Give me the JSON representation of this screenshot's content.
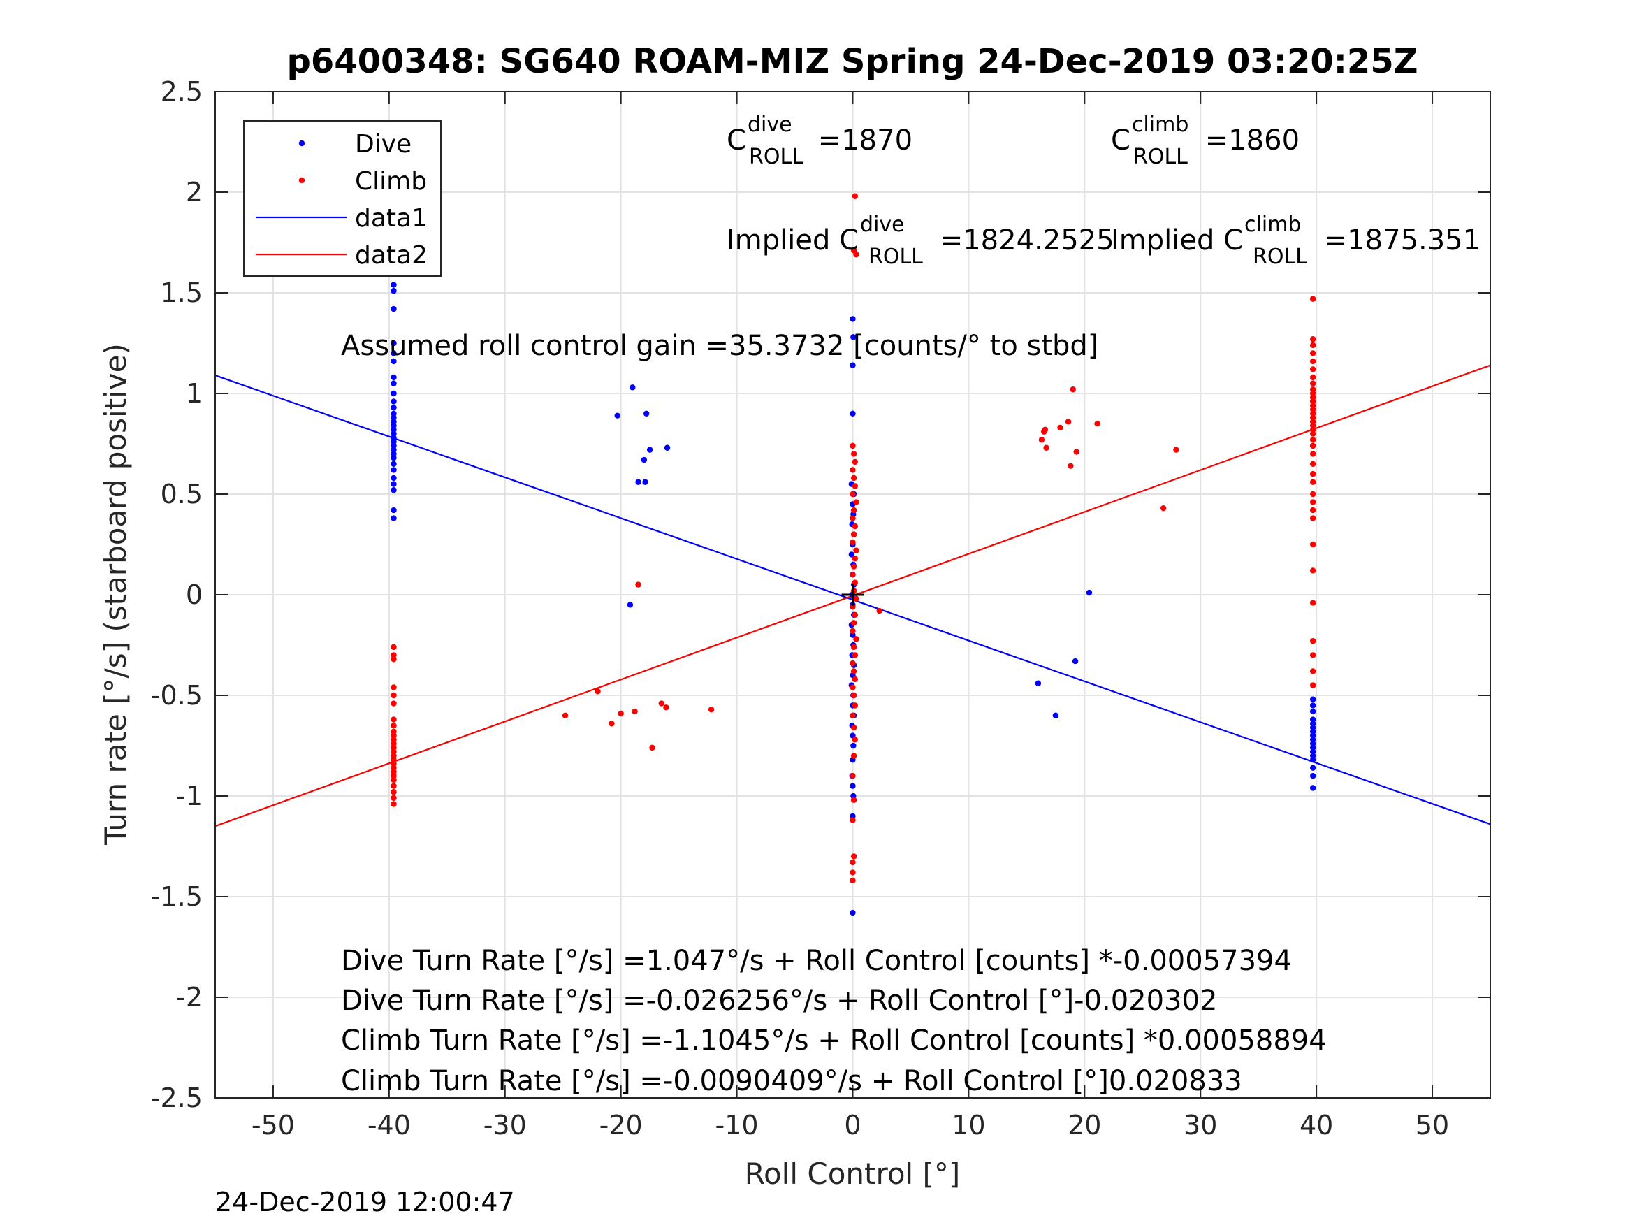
{
  "chart_data": {
    "type": "scatter",
    "title": "p6400348: SG640 ROAM-MIZ Spring 24-Dec-2019 03:20:25Z",
    "xlabel": "Roll Control [°]",
    "ylabel": "Turn rate [°/s] (starboard positive)",
    "xlim": [
      -55,
      55
    ],
    "ylim": [
      -2.5,
      2.5
    ],
    "xticks": [
      -50,
      -40,
      -30,
      -20,
      -10,
      0,
      10,
      20,
      30,
      40,
      50
    ],
    "yticks": [
      -2.5,
      -2,
      -1.5,
      -1,
      -0.5,
      0,
      0.5,
      1,
      1.5,
      2,
      2.5
    ],
    "xtick_labels": [
      "-50",
      "-40",
      "-30",
      "-20",
      "-10",
      "0",
      "10",
      "20",
      "30",
      "40",
      "50"
    ],
    "ytick_labels": [
      "-2.5",
      "-2",
      "-1.5",
      "-1",
      "-0.5",
      "0",
      "0.5",
      "1",
      "1.5",
      "2",
      "2.5"
    ],
    "grid": true,
    "legend_position": "top-left",
    "legend": [
      {
        "label": "Dive",
        "kind": "marker",
        "color": "#0000ff"
      },
      {
        "label": "Climb",
        "kind": "marker",
        "color": "#ff0000"
      },
      {
        "label": "data1",
        "kind": "line",
        "color": "#0000ff"
      },
      {
        "label": "data2",
        "kind": "line",
        "color": "#ff0000"
      }
    ],
    "series": [
      {
        "name": "Dive",
        "color": "#0000ff",
        "points": [
          [
            -39.6,
            1.54
          ],
          [
            -39.6,
            1.51
          ],
          [
            -39.6,
            1.42
          ],
          [
            -39.6,
            1.25
          ],
          [
            -39.6,
            1.2
          ],
          [
            -39.6,
            1.16
          ],
          [
            -39.6,
            1.08
          ],
          [
            -39.6,
            1.05
          ],
          [
            -39.6,
            1.0
          ],
          [
            -39.6,
            0.96
          ],
          [
            -39.6,
            0.93
          ],
          [
            -39.6,
            0.9
          ],
          [
            -39.6,
            0.88
          ],
          [
            -39.6,
            0.86
          ],
          [
            -39.6,
            0.84
          ],
          [
            -39.6,
            0.82
          ],
          [
            -39.6,
            0.8
          ],
          [
            -39.6,
            0.78
          ],
          [
            -39.6,
            0.76
          ],
          [
            -39.6,
            0.74
          ],
          [
            -39.6,
            0.72
          ],
          [
            -39.6,
            0.7
          ],
          [
            -39.6,
            0.68
          ],
          [
            -39.6,
            0.65
          ],
          [
            -39.6,
            0.62
          ],
          [
            -39.6,
            0.58
          ],
          [
            -39.6,
            0.55
          ],
          [
            -39.6,
            0.52
          ],
          [
            -39.6,
            0.42
          ],
          [
            -39.6,
            0.38
          ],
          [
            -19.0,
            1.03
          ],
          [
            -20.3,
            0.89
          ],
          [
            -17.8,
            0.9
          ],
          [
            -17.5,
            0.72
          ],
          [
            -16.0,
            0.73
          ],
          [
            -18.0,
            0.67
          ],
          [
            -18.5,
            0.56
          ],
          [
            -17.9,
            0.56
          ],
          [
            -19.2,
            -0.05
          ],
          [
            0.0,
            1.37
          ],
          [
            0.05,
            1.28
          ],
          [
            0.0,
            1.14
          ],
          [
            0.0,
            0.9
          ],
          [
            -0.1,
            0.55
          ],
          [
            0.1,
            0.5
          ],
          [
            0.0,
            0.45
          ],
          [
            0.05,
            0.4
          ],
          [
            -0.05,
            0.35
          ],
          [
            0.1,
            0.3
          ],
          [
            0.0,
            0.25
          ],
          [
            -0.1,
            0.2
          ],
          [
            0.05,
            0.15
          ],
          [
            0.0,
            0.1
          ],
          [
            0.1,
            0.05
          ],
          [
            -0.05,
            0.0
          ],
          [
            0.0,
            -0.05
          ],
          [
            0.1,
            -0.1
          ],
          [
            -0.1,
            -0.15
          ],
          [
            0.0,
            -0.2
          ],
          [
            0.05,
            -0.25
          ],
          [
            -0.05,
            -0.3
          ],
          [
            0.1,
            -0.35
          ],
          [
            0.0,
            -0.4
          ],
          [
            -0.1,
            -0.45
          ],
          [
            0.05,
            -0.5
          ],
          [
            0.0,
            -0.55
          ],
          [
            0.1,
            -0.6
          ],
          [
            -0.05,
            -0.65
          ],
          [
            0.0,
            -0.7
          ],
          [
            0.05,
            -0.75
          ],
          [
            0.0,
            -0.82
          ],
          [
            -0.05,
            -0.9
          ],
          [
            0.0,
            -0.95
          ],
          [
            0.05,
            -1.0
          ],
          [
            0.0,
            -1.1
          ],
          [
            0.0,
            -1.58
          ],
          [
            16.0,
            -0.44
          ],
          [
            17.5,
            -0.6
          ],
          [
            19.2,
            -0.33
          ],
          [
            20.4,
            0.01
          ],
          [
            39.7,
            -0.52
          ],
          [
            39.7,
            -0.55
          ],
          [
            39.7,
            -0.58
          ],
          [
            39.7,
            -0.62
          ],
          [
            39.7,
            -0.64
          ],
          [
            39.7,
            -0.66
          ],
          [
            39.7,
            -0.68
          ],
          [
            39.7,
            -0.7
          ],
          [
            39.7,
            -0.72
          ],
          [
            39.7,
            -0.74
          ],
          [
            39.7,
            -0.76
          ],
          [
            39.7,
            -0.78
          ],
          [
            39.7,
            -0.8
          ],
          [
            39.7,
            -0.82
          ],
          [
            39.7,
            -0.86
          ],
          [
            39.7,
            -0.9
          ],
          [
            39.7,
            -0.96
          ]
        ]
      },
      {
        "name": "Climb",
        "color": "#ff0000",
        "points": [
          [
            -39.6,
            -0.26
          ],
          [
            -39.6,
            -0.3
          ],
          [
            -39.6,
            -0.32
          ],
          [
            -39.6,
            -0.46
          ],
          [
            -39.6,
            -0.5
          ],
          [
            -39.6,
            -0.54
          ],
          [
            -39.6,
            -0.62
          ],
          [
            -39.6,
            -0.65
          ],
          [
            -39.6,
            -0.68
          ],
          [
            -39.6,
            -0.7
          ],
          [
            -39.6,
            -0.72
          ],
          [
            -39.6,
            -0.74
          ],
          [
            -39.6,
            -0.76
          ],
          [
            -39.6,
            -0.78
          ],
          [
            -39.6,
            -0.8
          ],
          [
            -39.6,
            -0.82
          ],
          [
            -39.6,
            -0.84
          ],
          [
            -39.6,
            -0.86
          ],
          [
            -39.6,
            -0.88
          ],
          [
            -39.6,
            -0.9
          ],
          [
            -39.6,
            -0.92
          ],
          [
            -39.6,
            -0.95
          ],
          [
            -39.6,
            -0.98
          ],
          [
            -39.6,
            -1.01
          ],
          [
            -39.6,
            -1.04
          ],
          [
            -24.8,
            -0.6
          ],
          [
            -22.0,
            -0.48
          ],
          [
            -20.8,
            -0.64
          ],
          [
            -20.0,
            -0.59
          ],
          [
            -18.8,
            -0.58
          ],
          [
            -16.5,
            -0.54
          ],
          [
            -16.1,
            -0.56
          ],
          [
            -17.3,
            -0.76
          ],
          [
            -12.2,
            -0.57
          ],
          [
            -18.5,
            0.05
          ],
          [
            0.2,
            1.98
          ],
          [
            0.1,
            1.71
          ],
          [
            0.3,
            1.69
          ],
          [
            0.0,
            0.74
          ],
          [
            0.1,
            0.7
          ],
          [
            0.2,
            0.66
          ],
          [
            0.0,
            0.62
          ],
          [
            0.1,
            0.58
          ],
          [
            0.2,
            0.54
          ],
          [
            0.0,
            0.5
          ],
          [
            0.3,
            0.46
          ],
          [
            0.1,
            0.42
          ],
          [
            0.0,
            0.38
          ],
          [
            0.2,
            0.34
          ],
          [
            0.1,
            0.3
          ],
          [
            0.0,
            0.26
          ],
          [
            0.3,
            0.22
          ],
          [
            0.2,
            0.18
          ],
          [
            0.1,
            0.14
          ],
          [
            0.0,
            0.1
          ],
          [
            0.2,
            0.06
          ],
          [
            0.1,
            0.02
          ],
          [
            0.3,
            -0.02
          ],
          [
            0.0,
            -0.06
          ],
          [
            0.2,
            -0.1
          ],
          [
            0.1,
            -0.14
          ],
          [
            0.0,
            -0.18
          ],
          [
            0.3,
            -0.22
          ],
          [
            0.1,
            -0.26
          ],
          [
            0.2,
            -0.3
          ],
          [
            0.0,
            -0.34
          ],
          [
            0.1,
            -0.38
          ],
          [
            0.2,
            -0.42
          ],
          [
            0.0,
            -0.46
          ],
          [
            0.1,
            -0.5
          ],
          [
            0.2,
            -0.55
          ],
          [
            0.0,
            -0.6
          ],
          [
            0.1,
            -0.66
          ],
          [
            0.2,
            -0.72
          ],
          [
            0.1,
            -0.8
          ],
          [
            0.0,
            -0.9
          ],
          [
            0.1,
            -1.02
          ],
          [
            0.0,
            -1.12
          ],
          [
            0.1,
            -1.3
          ],
          [
            0.0,
            -1.33
          ],
          [
            0.0,
            -1.38
          ],
          [
            0.0,
            -1.42
          ],
          [
            2.3,
            -0.08
          ],
          [
            16.3,
            0.77
          ],
          [
            16.5,
            0.81
          ],
          [
            16.6,
            0.82
          ],
          [
            16.7,
            0.73
          ],
          [
            17.9,
            0.83
          ],
          [
            18.6,
            0.86
          ],
          [
            19.0,
            1.02
          ],
          [
            19.3,
            0.71
          ],
          [
            18.8,
            0.64
          ],
          [
            21.1,
            0.85
          ],
          [
            26.8,
            0.43
          ],
          [
            27.9,
            0.72
          ],
          [
            39.7,
            1.47
          ],
          [
            39.7,
            1.27
          ],
          [
            39.7,
            1.24
          ],
          [
            39.7,
            1.2
          ],
          [
            39.7,
            1.16
          ],
          [
            39.7,
            1.12
          ],
          [
            39.7,
            1.08
          ],
          [
            39.7,
            1.05
          ],
          [
            39.7,
            1.02
          ],
          [
            39.7,
            1.0
          ],
          [
            39.7,
            0.98
          ],
          [
            39.7,
            0.96
          ],
          [
            39.7,
            0.94
          ],
          [
            39.7,
            0.92
          ],
          [
            39.7,
            0.9
          ],
          [
            39.7,
            0.88
          ],
          [
            39.7,
            0.86
          ],
          [
            39.7,
            0.84
          ],
          [
            39.7,
            0.82
          ],
          [
            39.7,
            0.8
          ],
          [
            39.7,
            0.77
          ],
          [
            39.7,
            0.74
          ],
          [
            39.7,
            0.7
          ],
          [
            39.7,
            0.65
          ],
          [
            39.7,
            0.6
          ],
          [
            39.7,
            0.56
          ],
          [
            39.7,
            0.5
          ],
          [
            39.7,
            0.46
          ],
          [
            39.7,
            0.42
          ],
          [
            39.7,
            0.38
          ],
          [
            39.7,
            0.25
          ],
          [
            39.7,
            0.12
          ],
          [
            39.7,
            -0.04
          ],
          [
            39.7,
            -0.23
          ],
          [
            39.7,
            -0.3
          ],
          [
            39.7,
            -0.38
          ],
          [
            39.7,
            -0.45
          ]
        ]
      }
    ],
    "fit_lines": [
      {
        "name": "data1",
        "color": "#0000ff",
        "x": [
          -55,
          55
        ],
        "y": [
          1.09,
          -1.14
        ]
      },
      {
        "name": "data2",
        "color": "#ff0000",
        "x": [
          -55,
          55
        ],
        "y": [
          -1.15,
          1.14
        ]
      }
    ],
    "center_marker": {
      "x": 0,
      "y": 0,
      "symbol": "+"
    },
    "annotations": {
      "c_dive": {
        "base": "C",
        "sup": "dive",
        "sub": "ROLL",
        "value": " =1870"
      },
      "c_climb": {
        "base": "C",
        "sup": "climb",
        "sub": "ROLL",
        "value": " =1860"
      },
      "implied_dive": {
        "prefix": "Implied C",
        "sup": "dive",
        "sub": "ROLL",
        "value": " =1824.2525"
      },
      "implied_climb": {
        "prefix": "Implied C",
        "sup": "climb",
        "sub": "ROLL",
        "value": " =1875.351"
      },
      "gain": "Assumed roll control gain =35.3732 [counts/° to stbd]",
      "equations": [
        "Dive Turn Rate [°/s] =1.047°/s + Roll Control [counts] *-0.00057394",
        "Dive Turn Rate [°/s] =-0.026256°/s + Roll Control [°]-0.020302",
        "Climb Turn Rate [°/s] =-1.1045°/s + Roll Control [counts] *0.00058894",
        "Climb Turn Rate [°/s] =-0.0090409°/s + Roll Control [°]0.020833"
      ]
    },
    "timestamp": "24-Dec-2019 12:00:47"
  }
}
